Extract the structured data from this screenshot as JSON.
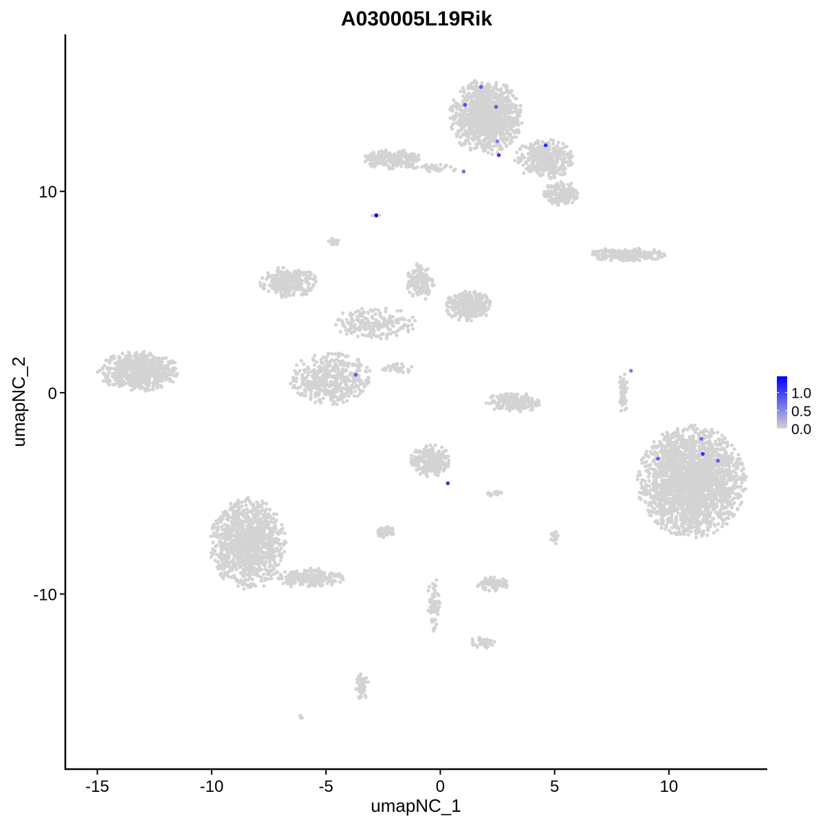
{
  "chart_data": {
    "type": "scatter",
    "title": "A030005L19Rik",
    "xlabel": "umapNC_1",
    "ylabel": "umapNC_2",
    "xlim": [
      -16.4,
      14.3
    ],
    "ylim": [
      -18.7,
      17.8
    ],
    "xticks": [
      -15,
      -10,
      -5,
      0,
      5,
      10
    ],
    "yticks": [
      -10,
      0,
      10
    ],
    "grid": false,
    "legend": {
      "placement": "right",
      "type": "colorbar",
      "ticks": [
        "0.0",
        "0.5",
        "1.0"
      ],
      "min": 0,
      "max": 1.45,
      "low_color": "#d3d3d3",
      "high_color": "#0000ff"
    },
    "clusters_unexpressed": [
      {
        "cx": -13.2,
        "cy": 1.06,
        "rx": 1.8,
        "ry": 1.0,
        "n": 650
      },
      {
        "cx": 1.99,
        "cy": 13.7,
        "rx": 1.6,
        "ry": 1.9,
        "n": 1000
      },
      {
        "cx": 4.55,
        "cy": 11.6,
        "rx": 1.3,
        "ry": 1.0,
        "n": 350
      },
      {
        "cx": 5.3,
        "cy": 9.9,
        "rx": 0.8,
        "ry": 0.6,
        "n": 200
      },
      {
        "cx": -2.08,
        "cy": 11.6,
        "rx": 1.3,
        "ry": 0.5,
        "n": 220
      },
      {
        "cx": -0.3,
        "cy": 11.15,
        "rx": 1.2,
        "ry": 0.2,
        "n": 40
      },
      {
        "cx": 11.0,
        "cy": -4.4,
        "rx": 2.4,
        "ry": 2.8,
        "n": 2200
      },
      {
        "cx": 8.16,
        "cy": 6.86,
        "rx": 1.7,
        "ry": 0.35,
        "n": 220
      },
      {
        "cx": -6.6,
        "cy": 5.5,
        "rx": 1.3,
        "ry": 0.8,
        "n": 280
      },
      {
        "cx": -4.8,
        "cy": 0.7,
        "rx": 1.8,
        "ry": 1.3,
        "n": 450
      },
      {
        "cx": 1.23,
        "cy": 4.3,
        "rx": 1.0,
        "ry": 0.8,
        "n": 300
      },
      {
        "cx": -0.87,
        "cy": 5.5,
        "rx": 0.6,
        "ry": 1.0,
        "n": 140
      },
      {
        "cx": -2.98,
        "cy": 3.45,
        "rx": 2.0,
        "ry": 0.8,
        "n": 200
      },
      {
        "cx": 3.2,
        "cy": -0.48,
        "rx": 1.2,
        "ry": 0.5,
        "n": 180
      },
      {
        "cx": -0.42,
        "cy": -3.38,
        "rx": 0.9,
        "ry": 0.8,
        "n": 250
      },
      {
        "cx": -8.4,
        "cy": -7.5,
        "rx": 1.7,
        "ry": 2.3,
        "n": 1100
      },
      {
        "cx": -5.7,
        "cy": -9.2,
        "rx": 1.5,
        "ry": 0.5,
        "n": 200
      },
      {
        "cx": -2.4,
        "cy": -6.9,
        "rx": 0.5,
        "ry": 0.3,
        "n": 60
      },
      {
        "cx": 2.29,
        "cy": -9.5,
        "rx": 0.7,
        "ry": 0.35,
        "n": 90
      },
      {
        "cx": -3.43,
        "cy": -14.6,
        "rx": 0.3,
        "ry": 0.7,
        "n": 50
      },
      {
        "cx": 8.0,
        "cy": 0.03,
        "rx": 0.25,
        "ry": 1.0,
        "n": 50
      },
      {
        "cx": -0.27,
        "cy": -10.5,
        "rx": 0.3,
        "ry": 1.4,
        "n": 60
      },
      {
        "cx": 1.9,
        "cy": -12.4,
        "rx": 0.6,
        "ry": 0.3,
        "n": 40
      },
      {
        "cx": -4.6,
        "cy": 7.5,
        "rx": 0.3,
        "ry": 0.2,
        "n": 20
      },
      {
        "cx": -6.1,
        "cy": -16.1,
        "rx": 0.1,
        "ry": 0.08,
        "n": 6
      },
      {
        "cx": -2.8,
        "cy": 8.8,
        "rx": 0.2,
        "ry": 0.08,
        "n": 10
      },
      {
        "cx": -1.9,
        "cy": 1.2,
        "rx": 0.7,
        "ry": 0.3,
        "n": 30
      },
      {
        "cx": 5.0,
        "cy": -7.2,
        "rx": 0.2,
        "ry": 0.4,
        "n": 20
      },
      {
        "cx": 2.4,
        "cy": -5.0,
        "rx": 0.4,
        "ry": 0.15,
        "n": 15
      }
    ],
    "expressed_points": [
      {
        "x": 1.78,
        "y": 15.19,
        "v": 0.8
      },
      {
        "x": 1.08,
        "y": 14.3,
        "v": 0.9
      },
      {
        "x": 2.44,
        "y": 14.2,
        "v": 0.8
      },
      {
        "x": 2.5,
        "y": 12.49,
        "v": 0.6
      },
      {
        "x": 2.56,
        "y": 11.8,
        "v": 1.1
      },
      {
        "x": 4.61,
        "y": 12.29,
        "v": 1.1
      },
      {
        "x": 1.02,
        "y": 10.99,
        "v": 0.7
      },
      {
        "x": -2.8,
        "y": 8.81,
        "v": 1.45
      },
      {
        "x": -3.7,
        "y": 0.89,
        "v": 0.8
      },
      {
        "x": 8.34,
        "y": 1.09,
        "v": 0.6
      },
      {
        "x": 0.33,
        "y": -4.5,
        "v": 1.1
      },
      {
        "x": 11.42,
        "y": -2.29,
        "v": 0.7
      },
      {
        "x": 9.52,
        "y": -3.28,
        "v": 0.8
      },
      {
        "x": 11.48,
        "y": -3.04,
        "v": 1.1
      },
      {
        "x": 12.14,
        "y": -3.38,
        "v": 0.8
      }
    ]
  }
}
